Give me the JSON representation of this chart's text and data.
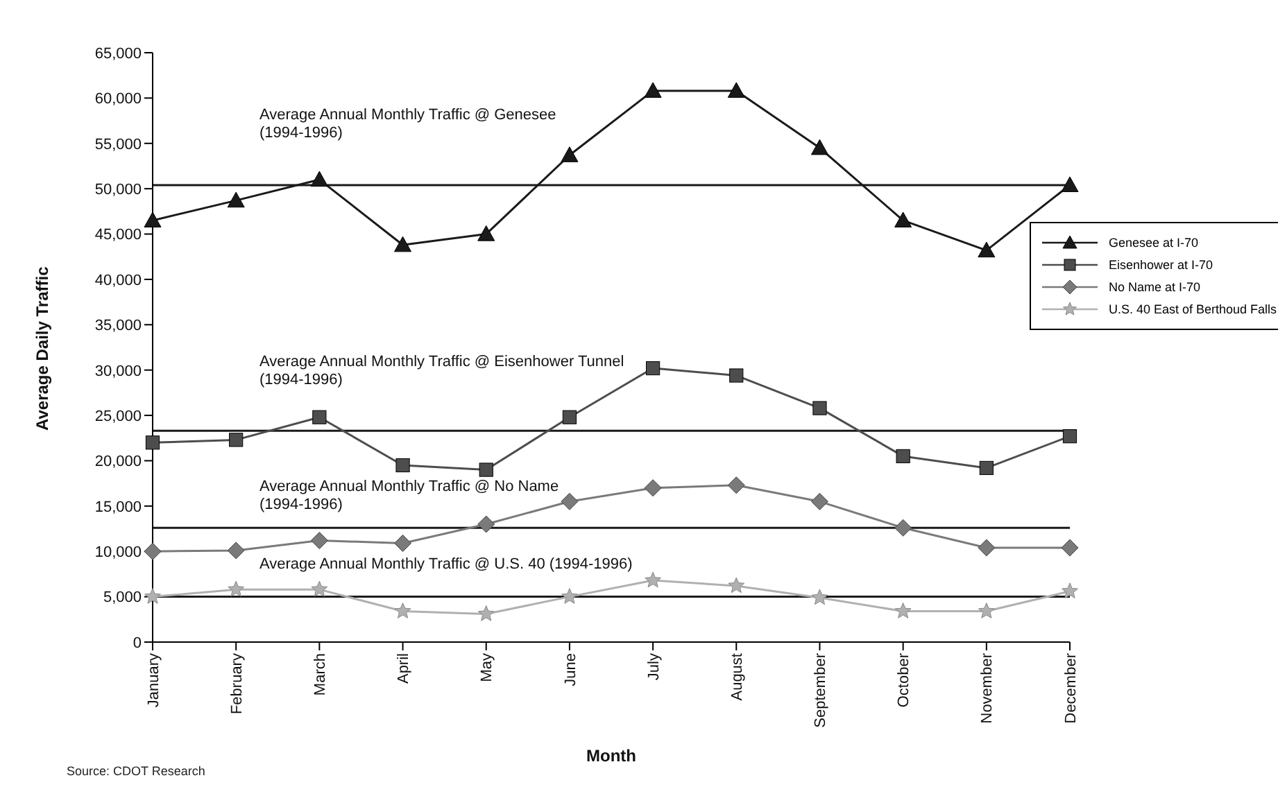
{
  "chart_data": {
    "type": "line",
    "xlabel": "Month",
    "ylabel": "Average Daily Traffic",
    "categories": [
      "January",
      "February",
      "March",
      "April",
      "May",
      "June",
      "July",
      "August",
      "September",
      "October",
      "November",
      "December"
    ],
    "series": [
      {
        "name": "Genesee at I-70",
        "color": "#1a1a1a",
        "marker": "triangle",
        "values": [
          46500,
          48700,
          51000,
          43800,
          45000,
          53700,
          60800,
          60800,
          54500,
          46500,
          43200,
          50400
        ]
      },
      {
        "name": "Eisenhower at I-70",
        "color": "#4d4d4d",
        "marker": "square",
        "values": [
          22000,
          22300,
          24800,
          19500,
          19000,
          24800,
          30200,
          29400,
          25800,
          20500,
          19200,
          22700
        ]
      },
      {
        "name": "No Name at I-70",
        "color": "#7a7a7a",
        "marker": "diamond",
        "values": [
          10000,
          10100,
          11200,
          10900,
          13000,
          15500,
          17000,
          17300,
          15500,
          12600,
          10400,
          10400
        ]
      },
      {
        "name": "U.S. 40 East of Berthoud Falls",
        "color": "#b0b0b0",
        "marker": "star",
        "values": [
          5000,
          5800,
          5800,
          3400,
          3100,
          5000,
          6800,
          6200,
          4900,
          3400,
          3400,
          5600
        ]
      }
    ],
    "ylim": [
      0,
      65000
    ],
    "yticks": [
      {
        "value": 0,
        "label": "0"
      },
      {
        "value": 5000,
        "label": "5,000"
      },
      {
        "value": 10000,
        "label": "10,000"
      },
      {
        "value": 15000,
        "label": "15,000"
      },
      {
        "value": 20000,
        "label": "20,000"
      },
      {
        "value": 25000,
        "label": "25,000"
      },
      {
        "value": 30000,
        "label": "30,000"
      },
      {
        "value": 35000,
        "label": "35,000"
      },
      {
        "value": 40000,
        "label": "40,000"
      },
      {
        "value": 45000,
        "label": "45,000"
      },
      {
        "value": 50000,
        "label": "50,000"
      },
      {
        "value": 55000,
        "label": "55,000"
      },
      {
        "value": 60000,
        "label": "60,000"
      },
      {
        "value": 65000,
        "label": "65,000"
      }
    ],
    "ref_lines": [
      {
        "axis": "y",
        "value": 50400,
        "color": "#1a1a1a"
      },
      {
        "axis": "y",
        "value": 23300,
        "color": "#1a1a1a"
      },
      {
        "axis": "y",
        "value": 12600,
        "color": "#1a1a1a"
      },
      {
        "axis": "y",
        "value": 5000,
        "color": "#1a1a1a"
      }
    ],
    "legend": "right",
    "grid": false,
    "line_style": "solid",
    "annotations": [
      "Average Annual Monthly Traffic @ Genesee\n(1994-1996)",
      "Average Annual Monthly Traffic @ Eisenhower Tunnel\n(1994-1996)",
      "Average Annual Monthly Traffic @ No Name\n(1994-1996)",
      "Average Annual Monthly Traffic @ U.S. 40 (1994-1996)",
      "Source: CDOT Research"
    ]
  }
}
